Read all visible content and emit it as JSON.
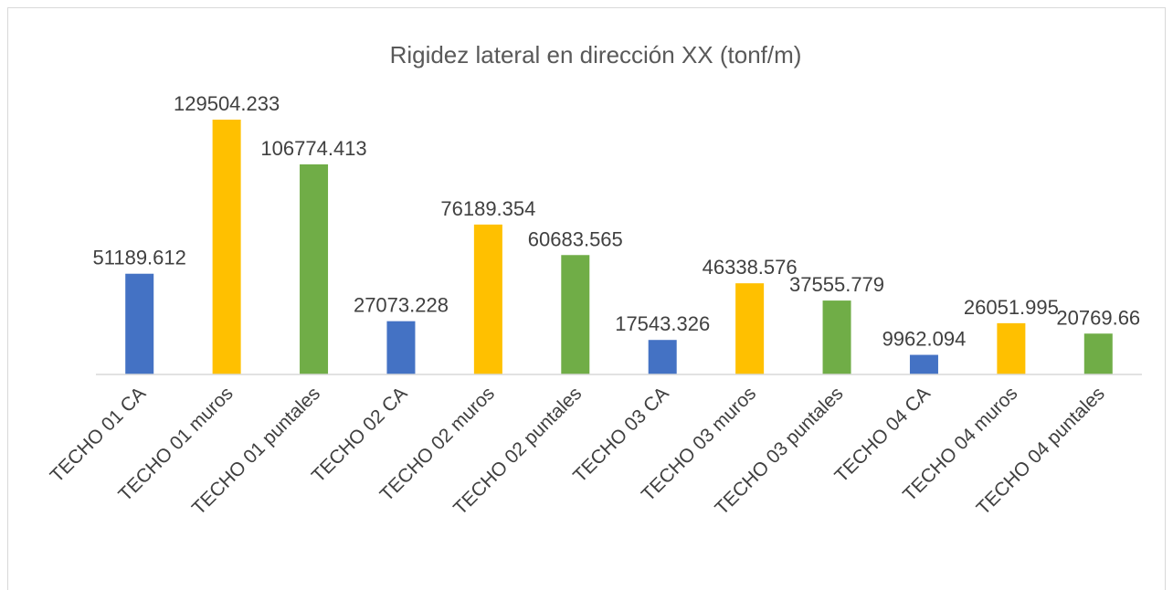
{
  "chart_data": {
    "type": "bar",
    "title": "Rigidez lateral en dirección XX (tonf/m)",
    "categories": [
      "TECHO 01 CA",
      "TECHO 01 muros",
      "TECHO 01 puntales",
      "TECHO 02 CA",
      "TECHO 02 muros",
      "TECHO 02 puntales",
      "TECHO 03 CA",
      "TECHO 03 muros",
      "TECHO 03 puntales",
      "TECHO 04 CA",
      "TECHO 04 muros",
      "TECHO 04 puntales"
    ],
    "values": [
      51189.612,
      129504.233,
      106774.413,
      27073.228,
      76189.354,
      60683.565,
      17543.326,
      46338.576,
      37555.779,
      9962.094,
      26051.995,
      20769.66
    ],
    "colors": [
      "#4472c4",
      "#ffc000",
      "#70ad47",
      "#4472c4",
      "#ffc000",
      "#70ad47",
      "#4472c4",
      "#ffc000",
      "#70ad47",
      "#4472c4",
      "#ffc000",
      "#70ad47"
    ]
  }
}
